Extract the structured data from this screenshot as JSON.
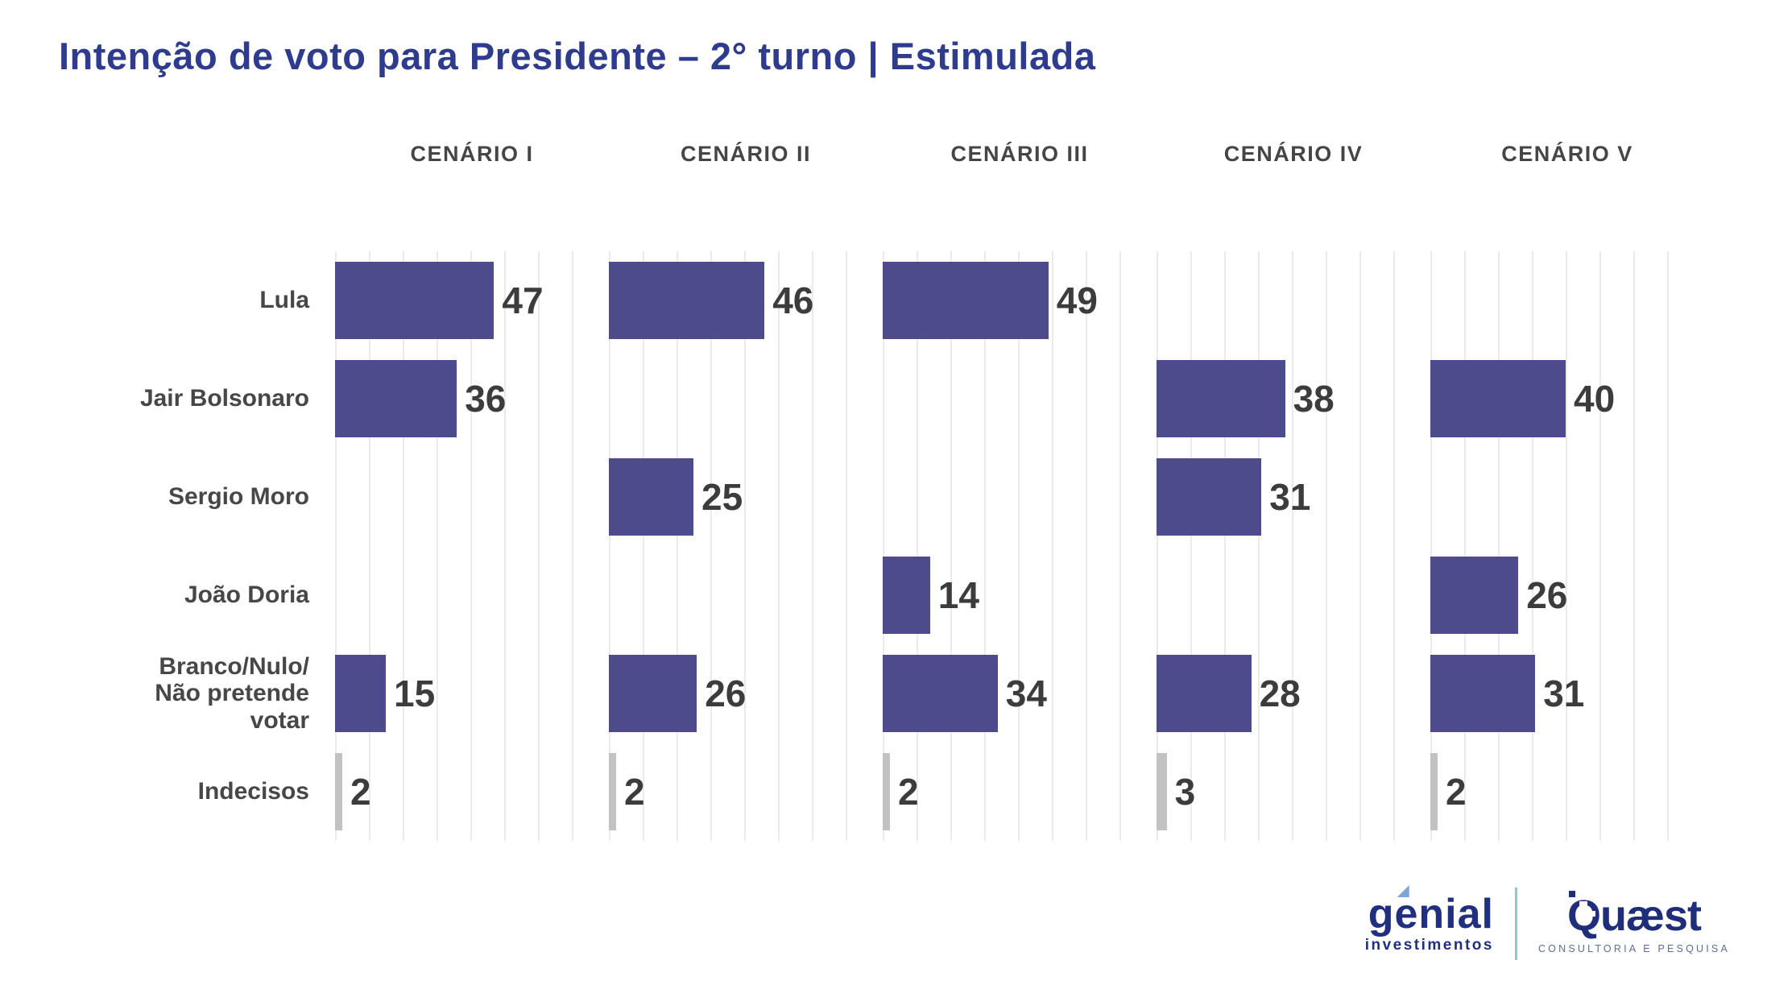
{
  "title": "Intenção de voto para Presidente – 2° turno | Estimulada",
  "chart_data": {
    "type": "bar",
    "orientation": "horizontal",
    "title": "Intenção de voto para Presidente – 2° turno | Estimulada",
    "categories": [
      "Lula",
      "Jair Bolsonaro",
      "Sergio Moro",
      "João Doria",
      "Branco/Nulo/\nNão pretende\nvotar",
      "Indecisos"
    ],
    "series": [
      {
        "name": "CENÁRIO I",
        "values": [
          47,
          36,
          null,
          null,
          15,
          2
        ]
      },
      {
        "name": "CENÁRIO II",
        "values": [
          46,
          null,
          25,
          null,
          26,
          2
        ]
      },
      {
        "name": "CENÁRIO III",
        "values": [
          49,
          null,
          null,
          14,
          34,
          2
        ]
      },
      {
        "name": "CENÁRIO IV",
        "values": [
          null,
          38,
          31,
          null,
          28,
          3
        ]
      },
      {
        "name": "CENÁRIO V",
        "values": [
          null,
          40,
          null,
          26,
          31,
          2
        ]
      }
    ],
    "xlim": [
      0,
      70
    ],
    "gridline_interval": 10,
    "grid": "vertical-light-gray",
    "legend": "none",
    "bar_color": "#4D4B8C",
    "muted_category": "Indecisos",
    "muted_bar_color": "#C2C2C2",
    "value_label_color": "#3C3C3C",
    "title_color": "#2F3C8E"
  },
  "footer": {
    "genial": {
      "brand": "genial",
      "sub": "investimentos"
    },
    "quaest": {
      "brand": "Quæst",
      "sub": "CONSULTORIA E PESQUISA"
    }
  }
}
